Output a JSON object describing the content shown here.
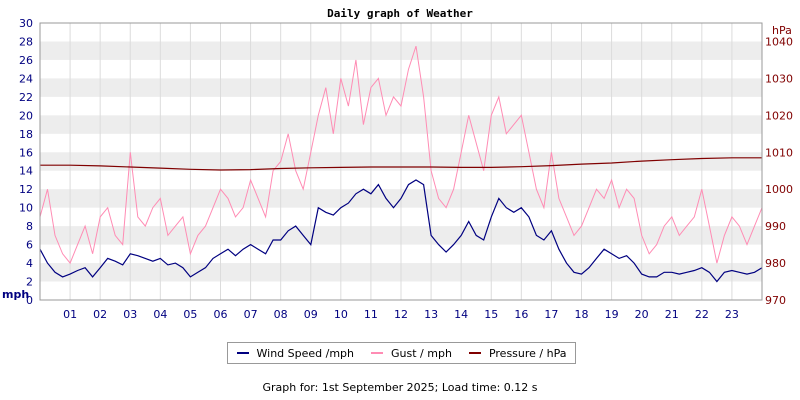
{
  "chart_data": {
    "type": "line",
    "title": "Daily graph of Weather",
    "x": {
      "unit": "hour",
      "range": [
        0,
        24
      ],
      "tick_labels": [
        "01",
        "02",
        "03",
        "04",
        "05",
        "06",
        "07",
        "08",
        "09",
        "10",
        "11",
        "12",
        "13",
        "14",
        "15",
        "16",
        "17",
        "18",
        "19",
        "20",
        "21",
        "22",
        "23"
      ]
    },
    "y_left": {
      "label": "mph",
      "range": [
        0,
        30
      ],
      "ticks": [
        0,
        2,
        4,
        6,
        8,
        10,
        12,
        14,
        16,
        18,
        20,
        22,
        24,
        26,
        28,
        30
      ]
    },
    "y_right": {
      "label": "hPa",
      "range": [
        970,
        1045
      ],
      "ticks": [
        970,
        980,
        990,
        1000,
        1010,
        1020,
        1030,
        1040
      ]
    },
    "series": [
      {
        "name": "Wind Speed /mph",
        "color": "#000080",
        "axis": "left",
        "x": [
          0,
          0.25,
          0.5,
          0.75,
          1,
          1.25,
          1.5,
          1.75,
          2,
          2.25,
          2.5,
          2.75,
          3,
          3.25,
          3.5,
          3.75,
          4,
          4.25,
          4.5,
          4.75,
          5,
          5.25,
          5.5,
          5.75,
          6,
          6.25,
          6.5,
          6.75,
          7,
          7.25,
          7.5,
          7.75,
          8,
          8.25,
          8.5,
          8.75,
          9,
          9.25,
          9.5,
          9.75,
          10,
          10.25,
          10.5,
          10.75,
          11,
          11.25,
          11.5,
          11.75,
          12,
          12.25,
          12.5,
          12.75,
          13,
          13.25,
          13.5,
          13.75,
          14,
          14.25,
          14.5,
          14.75,
          15,
          15.25,
          15.5,
          15.75,
          16,
          16.25,
          16.5,
          16.75,
          17,
          17.25,
          17.5,
          17.75,
          18,
          18.25,
          18.5,
          18.75,
          19,
          19.25,
          19.5,
          19.75,
          20,
          20.25,
          20.5,
          20.75,
          21,
          21.25,
          21.5,
          21.75,
          22,
          22.25,
          22.5,
          22.75,
          23,
          23.25,
          23.5,
          23.75,
          24
        ],
        "values": [
          5.5,
          4,
          3,
          2.5,
          2.8,
          3.2,
          3.5,
          2.5,
          3.5,
          4.5,
          4.2,
          3.8,
          5,
          4.8,
          4.5,
          4.2,
          4.5,
          3.8,
          4,
          3.5,
          2.5,
          3,
          3.5,
          4.5,
          5,
          5.5,
          4.8,
          5.5,
          6,
          5.5,
          5,
          6.5,
          6.5,
          7.5,
          8,
          7,
          6,
          10,
          9.5,
          9.2,
          10,
          10.5,
          11.5,
          12,
          11.5,
          12.5,
          11,
          10,
          11,
          12.5,
          13,
          12.5,
          7,
          6,
          5.2,
          6,
          7,
          8.5,
          7,
          6.5,
          9,
          11,
          10,
          9.5,
          10,
          9,
          7,
          6.5,
          7.5,
          5.5,
          4,
          3,
          2.8,
          3.5,
          4.5,
          5.5,
          5,
          4.5,
          4.8,
          4,
          2.8,
          2.5,
          2.5,
          3,
          3,
          2.8,
          3,
          3.2,
          3.5,
          3,
          2,
          3,
          3.2,
          3,
          2.8,
          3,
          3.5
        ]
      },
      {
        "name": "Gust / mph",
        "color": "#FF8CB4",
        "axis": "left",
        "x": [
          0,
          0.25,
          0.5,
          0.75,
          1,
          1.25,
          1.5,
          1.75,
          2,
          2.25,
          2.5,
          2.75,
          3,
          3.25,
          3.5,
          3.75,
          4,
          4.25,
          4.5,
          4.75,
          5,
          5.25,
          5.5,
          5.75,
          6,
          6.25,
          6.5,
          6.75,
          7,
          7.25,
          7.5,
          7.75,
          8,
          8.25,
          8.5,
          8.75,
          9,
          9.25,
          9.5,
          9.75,
          10,
          10.25,
          10.5,
          10.75,
          11,
          11.25,
          11.5,
          11.75,
          12,
          12.25,
          12.5,
          12.75,
          13,
          13.25,
          13.5,
          13.75,
          14,
          14.25,
          14.5,
          14.75,
          15,
          15.25,
          15.5,
          15.75,
          16,
          16.25,
          16.5,
          16.75,
          17,
          17.25,
          17.5,
          17.75,
          18,
          18.25,
          18.5,
          18.75,
          19,
          19.25,
          19.5,
          19.75,
          20,
          20.25,
          20.5,
          20.75,
          21,
          21.25,
          21.5,
          21.75,
          22,
          22.25,
          22.5,
          22.75,
          23,
          23.25,
          23.5,
          23.75,
          24
        ],
        "values": [
          9,
          12,
          7,
          5,
          4,
          6,
          8,
          5,
          9,
          10,
          7,
          6,
          16,
          9,
          8,
          10,
          11,
          7,
          8,
          9,
          5,
          7,
          8,
          10,
          12,
          11,
          9,
          10,
          13,
          11,
          9,
          14,
          15,
          18,
          14,
          12,
          16,
          20,
          23,
          18,
          24,
          21,
          26,
          19,
          23,
          24,
          20,
          22,
          21,
          25,
          27.5,
          22,
          14,
          11,
          10,
          12,
          16,
          20,
          17,
          14,
          20,
          22,
          18,
          19,
          20,
          16,
          12,
          10,
          16,
          11,
          9,
          7,
          8,
          10,
          12,
          11,
          13,
          10,
          12,
          11,
          7,
          5,
          6,
          8,
          9,
          7,
          8,
          9,
          12,
          8,
          4,
          7,
          9,
          8,
          6,
          8,
          10
        ]
      },
      {
        "name": "Pressure / hPa",
        "color": "#800000",
        "axis": "right",
        "x": [
          0,
          1,
          2,
          3,
          4,
          5,
          6,
          7,
          8,
          9,
          10,
          11,
          12,
          13,
          14,
          15,
          16,
          17,
          18,
          19,
          20,
          21,
          22,
          23,
          24
        ],
        "values": [
          1006.5,
          1006.5,
          1006.3,
          1006,
          1005.7,
          1005.4,
          1005.2,
          1005.3,
          1005.6,
          1005.8,
          1005.9,
          1006,
          1006,
          1006,
          1005.9,
          1005.9,
          1006.1,
          1006.4,
          1006.8,
          1007.1,
          1007.6,
          1008,
          1008.3,
          1008.5,
          1008.5
        ]
      }
    ]
  },
  "legend": {
    "items": [
      {
        "label": "Wind Speed /mph",
        "color": "#000080"
      },
      {
        "label": "Gust / mph",
        "color": "#FF8CB4"
      },
      {
        "label": "Pressure / hPa",
        "color": "#800000"
      }
    ]
  },
  "footer": "Graph for: 1st September 2025; Load time: 0.12 s"
}
